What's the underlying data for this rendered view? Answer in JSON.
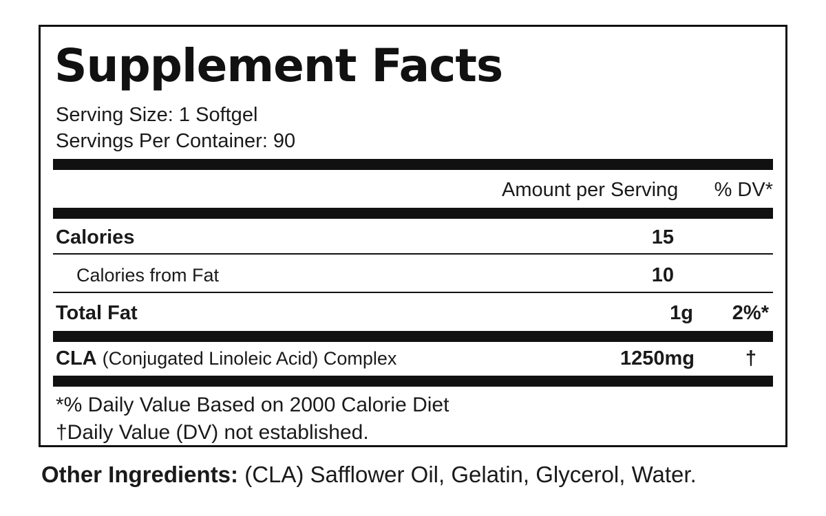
{
  "panel": {
    "title": "Supplement Facts",
    "serving_size": "Serving Size: 1 Softgel",
    "servings_per_container": "Servings Per Container: 90"
  },
  "table": {
    "header": {
      "amount_per_serving": "Amount per Serving",
      "dv": "% DV*"
    },
    "rows": [
      {
        "name": "Calories",
        "detail": "",
        "amount": "15",
        "dv": ""
      },
      {
        "name": "Calories from Fat",
        "detail": "",
        "amount": "10",
        "dv": ""
      },
      {
        "name": "Total Fat",
        "detail": "",
        "amount": "1g",
        "dv": "2%*"
      },
      {
        "name": "CLA",
        "detail": "(Conjugated Linoleic Acid) Complex",
        "amount": "1250mg",
        "dv": "†"
      }
    ]
  },
  "footnotes": {
    "daily_value": "*% Daily Value Based on 2000 Calorie Diet",
    "not_established": "†Daily Value (DV) not established."
  },
  "other_ingredients": {
    "label": "Other Ingredients:",
    "text": "(CLA) Safflower Oil, Gelatin, Glycerol, Water."
  },
  "colors": {
    "rule": "#111111",
    "text": "#1a1a1a",
    "background": "#ffffff"
  }
}
